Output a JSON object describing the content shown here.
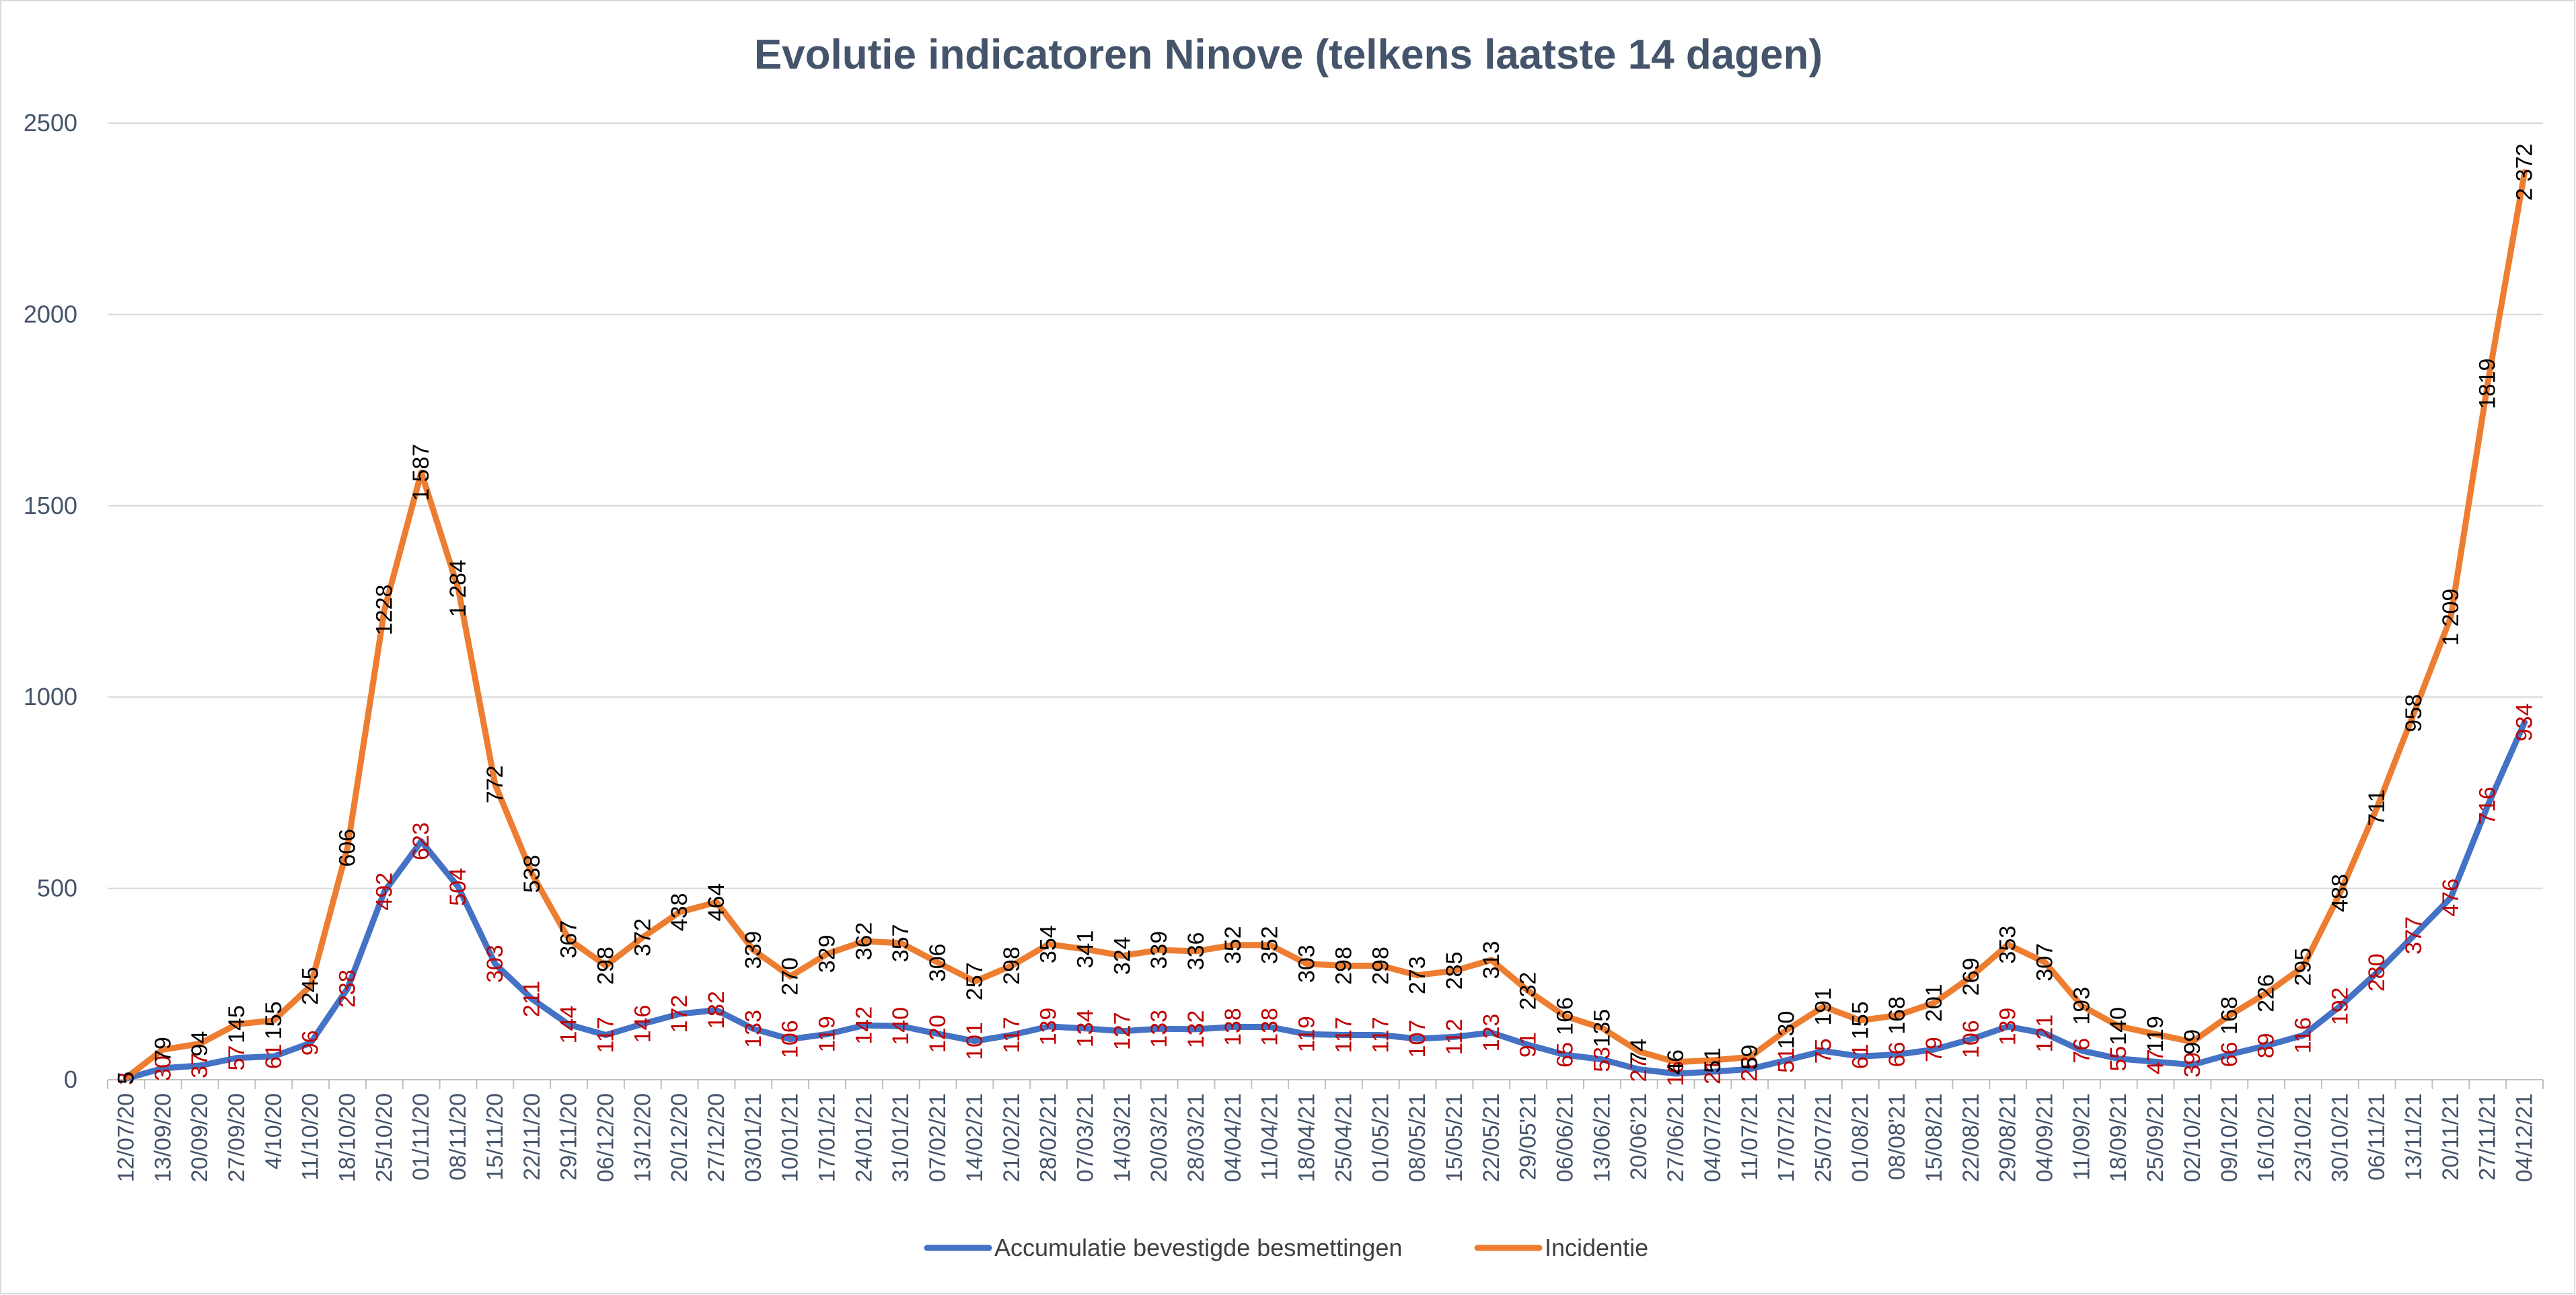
{
  "chart_data": {
    "type": "line",
    "title": "Evolutie indicatoren Ninove (telkens laatste 14 dagen)",
    "xlabel": "",
    "ylabel": "",
    "ylim": [
      0,
      2500
    ],
    "yticks": [
      "0",
      "500",
      "1000",
      "1500",
      "2000",
      "2500"
    ],
    "grid": true,
    "legend_position": "bottom",
    "categories": [
      "12/07/20",
      "13/09/20",
      "20/09/20",
      "27/09/20",
      "4/10/20",
      "11/10/20",
      "18/10/20",
      "25/10/20",
      "01/11/20",
      "08/11/20",
      "15/11/20",
      "22/11/20",
      "29/11/20",
      "06/12/20",
      "13/12/20",
      "20/12/20",
      "27/12/20",
      "03/01/21",
      "10/01/21",
      "17/01/21",
      "24/01/21",
      "31/01/21",
      "07/02/21",
      "14/02/21",
      "21/02/21",
      "28/02/21",
      "07/03/21",
      "14/03/21",
      "20/03/21",
      "28/03/21",
      "04/04/21",
      "11/04/21",
      "18/04/21",
      "25/04/21",
      "01/05/21",
      "08/05/21",
      "15/05/21",
      "22/05/21",
      "29/05'21",
      "06/06/21",
      "13/06/21",
      "20/06'21",
      "27/06/21",
      "04/07/21",
      "11/07/21",
      "17/07/21",
      "25/07/21",
      "01/08/21",
      "08/08'21",
      "15/08/21",
      "22/08/21",
      "29/08/21",
      "04/09/21",
      "11/09/21",
      "18/09/21",
      "25/09/21",
      "02/10/21",
      "09/10/21",
      "16/10/21",
      "23/10/21",
      "30/10/21",
      "06/11/21",
      "13/11/21",
      "20/11/21",
      "27/11/21",
      "04/12/21"
    ],
    "series": [
      {
        "name": "Accumulatie bevestigde besmettingen",
        "color": "#4472c4",
        "label_color": "#c00000",
        "values": [
          3,
          30,
          37,
          57,
          61,
          96,
          238,
          492,
          623,
          504,
          303,
          211,
          144,
          117,
          146,
          172,
          182,
          133,
          106,
          119,
          142,
          140,
          120,
          101,
          117,
          139,
          134,
          127,
          133,
          132,
          138,
          138,
          119,
          117,
          117,
          107,
          112,
          123,
          91,
          65,
          53,
          27,
          16,
          21,
          28,
          51,
          75,
          61,
          66,
          79,
          106,
          139,
          121,
          76,
          55,
          47,
          39,
          66,
          89,
          116,
          192,
          280,
          377,
          476,
          716,
          934
        ],
        "labels": [
          "3",
          "30",
          "37",
          "57",
          "61",
          "96",
          "238",
          "492",
          "623",
          "504",
          "303",
          "211",
          "144",
          "117",
          "146",
          "172",
          "182",
          "133",
          "106",
          "119",
          "142",
          "140",
          "120",
          "101",
          "117",
          "139",
          "134",
          "127",
          "133",
          "132",
          "138",
          "138",
          "119",
          "117",
          "117",
          "107",
          "112",
          "123",
          "91",
          "65",
          "53",
          "27",
          "16",
          "21",
          "28",
          "51",
          "75",
          "61",
          "66",
          "79",
          "106",
          "139",
          "121",
          "76",
          "55",
          "47",
          "39",
          "66",
          "89",
          "116",
          "192",
          "280",
          "377",
          "476",
          "716",
          "934"
        ]
      },
      {
        "name": "Incidentie",
        "color": "#ed7d31",
        "label_color": "#000000",
        "values": [
          5,
          79,
          94,
          145,
          155,
          245,
          606,
          1228,
          1587,
          1284,
          772,
          538,
          367,
          298,
          372,
          438,
          464,
          339,
          270,
          329,
          362,
          357,
          306,
          257,
          298,
          354,
          341,
          324,
          339,
          336,
          352,
          352,
          303,
          298,
          298,
          273,
          285,
          313,
          232,
          166,
          135,
          74,
          46,
          51,
          59,
          130,
          191,
          155,
          168,
          201,
          269,
          353,
          307,
          193,
          140,
          119,
          99,
          168,
          226,
          295,
          488,
          711,
          958,
          1209,
          1819,
          2372
        ],
        "labels": [
          "5",
          "79",
          "94",
          "145",
          "155",
          "245",
          "606",
          "1228",
          "1 587",
          "1 284",
          "772",
          "538",
          "367",
          "298",
          "372",
          "438",
          "464",
          "339",
          "270",
          "329",
          "362",
          "357",
          "306",
          "257",
          "298",
          "354",
          "341",
          "324",
          "339",
          "336",
          "352",
          "352",
          "303",
          "298",
          "298",
          "273",
          "285",
          "313",
          "232",
          "166",
          "135",
          "74",
          "46",
          "51",
          "59",
          "130",
          "191",
          "155",
          "168",
          "201",
          "269",
          "353",
          "307",
          "193",
          "140",
          "119",
          "99",
          "168",
          "226",
          "295",
          "488",
          "711",
          "958",
          "1 209",
          "1819",
          "2 372"
        ]
      }
    ]
  }
}
